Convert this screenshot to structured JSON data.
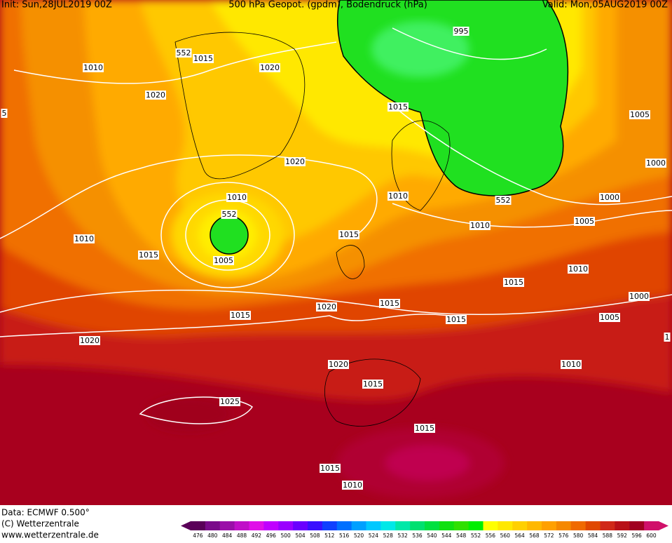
{
  "header": {
    "init": "Init: Sun,28JUL2019 00Z",
    "title": "500 hPa Geopot. (gpdm), Bodendruck (hPa)",
    "valid": "Valid: Mon,05AUG2019 00Z"
  },
  "isobar_labels": [
    "1010",
    "552",
    "1015",
    "1020",
    "1020",
    "995",
    "1015",
    "1005",
    "1000",
    "1020",
    "1010",
    "552",
    "1010",
    "552",
    "1000",
    "1010",
    "1015",
    "1010",
    "1005",
    "1015",
    "1005",
    "1010",
    "1015",
    "1020",
    "1015",
    "1000",
    "1015",
    "1015",
    "1005",
    "1020",
    "1020",
    "1010",
    "1015",
    "1025",
    "1015",
    "1015",
    "1010",
    "5",
    "1"
  ],
  "footer": {
    "data": "Data: ECMWF   0.500°",
    "copyright": "(C) Wetterzentrale",
    "url": "www.wetterzentrale.de"
  },
  "colorbar": {
    "levels": [
      476,
      480,
      484,
      488,
      492,
      496,
      500,
      504,
      508,
      512,
      516,
      520,
      524,
      528,
      532,
      536,
      540,
      544,
      548,
      552,
      556,
      560,
      564,
      568,
      572,
      576,
      580,
      584,
      588,
      592,
      596,
      600
    ],
    "colors": [
      "#5a0058",
      "#7a0a8a",
      "#9a10a8",
      "#c010c8",
      "#e010e8",
      "#c000ff",
      "#9a00ff",
      "#6a00ff",
      "#3a10ff",
      "#1040ff",
      "#0070ff",
      "#00a0ff",
      "#00c8ff",
      "#00e8e8",
      "#00e8a8",
      "#00e070",
      "#00e040",
      "#10e010",
      "#30e000",
      "#00ee00",
      "#ffff00",
      "#ffe800",
      "#ffd000",
      "#ffb800",
      "#ffa000",
      "#f58800",
      "#f06a00",
      "#e04800",
      "#d02818",
      "#b81018",
      "#a00020",
      "#d0106a"
    ]
  }
}
